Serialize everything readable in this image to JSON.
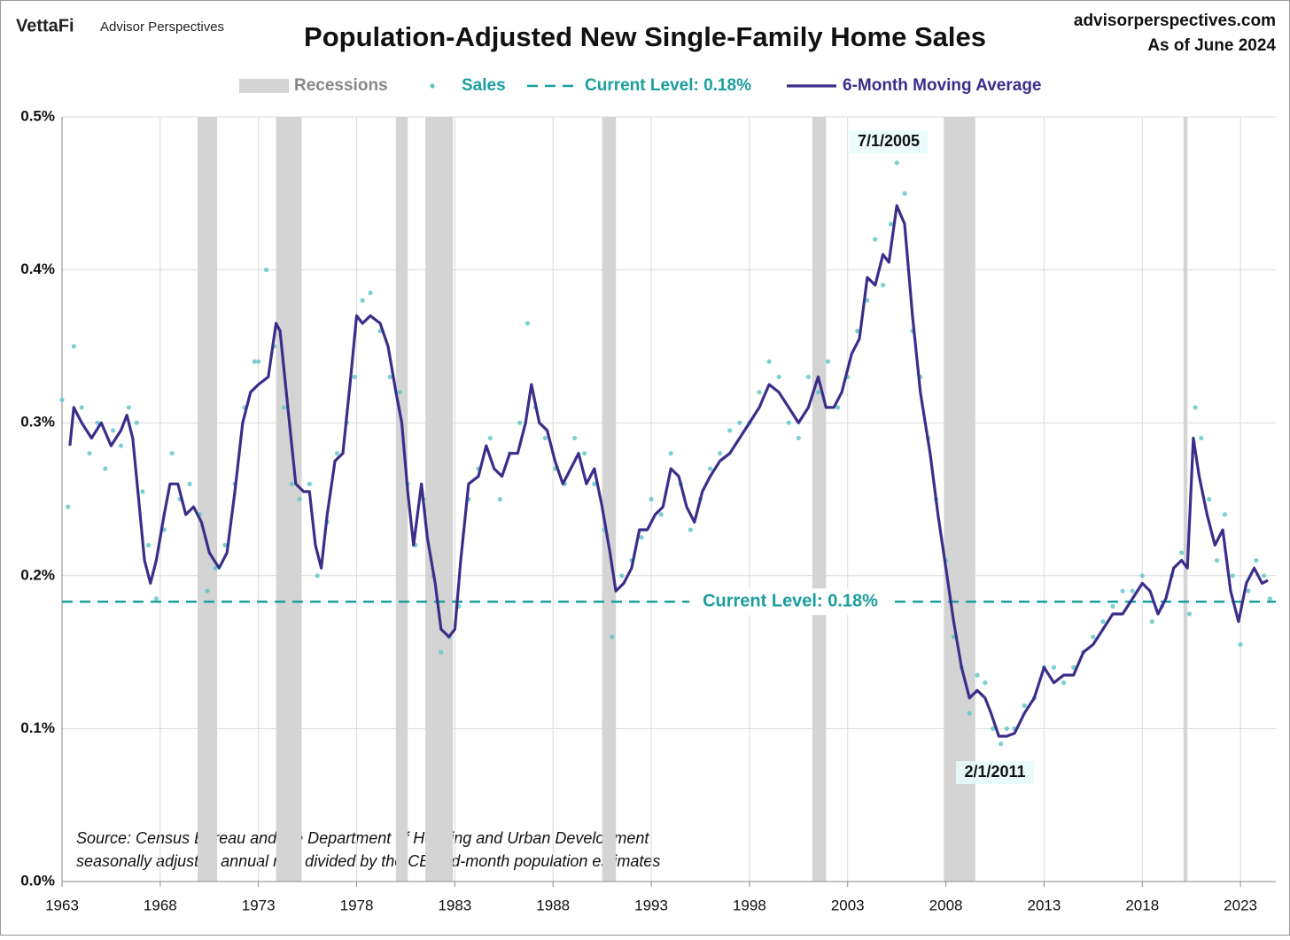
{
  "chart_data": {
    "type": "line",
    "title": "Population-Adjusted New Single-Family Home Sales",
    "logo": "VettaFi",
    "logo_sub": "Advisor Perspectives",
    "site": "advisorperspectives.com",
    "as_of": "As of June 2024",
    "source": [
      "Source: Census Bureau and the Department of Housing and Urban Development",
      "seasonally adjusted annual rate divided by the CB mid-month population estimates"
    ],
    "annotations": [
      "7/1/2005",
      "2/1/2011"
    ],
    "xlim": [
      1963,
      2024.8
    ],
    "xticks": [
      1963,
      1968,
      1973,
      1978,
      1983,
      1988,
      1993,
      1998,
      2003,
      2008,
      2013,
      2018,
      2023
    ],
    "ylim": [
      0,
      0.5
    ],
    "yticks": [
      {
        "value": 0,
        "label": "0.0%"
      },
      {
        "value": 0.1,
        "label": "0.1%"
      },
      {
        "value": 0.2,
        "label": "0.2%"
      },
      {
        "value": 0.3,
        "label": "0.3%"
      },
      {
        "value": 0.4,
        "label": "0.4%"
      },
      {
        "value": 0.5,
        "label": "0.5%"
      }
    ],
    "grid": true,
    "recessions": {
      "name": "Recessions",
      "color": "#d4d4d4",
      "periods": [
        [
          1969.9,
          1970.9
        ],
        [
          1973.9,
          1975.2
        ],
        [
          1980.0,
          1980.6
        ],
        [
          1981.5,
          1982.9
        ],
        [
          1990.5,
          1991.2
        ],
        [
          2001.2,
          2001.9
        ],
        [
          2007.9,
          2009.5
        ],
        [
          2020.1,
          2020.3
        ]
      ]
    },
    "reference_line": {
      "name": "Current Level: 0.18%",
      "value": 0.183,
      "color": "#1a9e9e"
    },
    "series": [
      {
        "name": "Sales",
        "kind": "scatter",
        "color": "#5cc4c4",
        "x": [
          1963.0,
          1963.3,
          1963.6,
          1964.0,
          1964.4,
          1964.8,
          1965.2,
          1965.6,
          1966.0,
          1966.4,
          1966.8,
          1967.1,
          1967.4,
          1967.8,
          1968.2,
          1968.6,
          1969.0,
          1969.5,
          1970.0,
          1970.4,
          1970.8,
          1971.3,
          1971.8,
          1972.3,
          1972.8,
          1973.0,
          1973.4,
          1973.8,
          1974.3,
          1974.7,
          1975.1,
          1975.6,
          1976.0,
          1976.5,
          1977.0,
          1977.5,
          1977.9,
          1978.3,
          1978.7,
          1979.2,
          1979.7,
          1980.2,
          1980.6,
          1981.0,
          1981.4,
          1981.9,
          1982.3,
          1982.7,
          1983.2,
          1983.7,
          1984.2,
          1984.8,
          1985.3,
          1985.8,
          1986.3,
          1986.7,
          1987.1,
          1987.6,
          1988.1,
          1988.6,
          1989.1,
          1989.6,
          1990.1,
          1990.6,
          1991.0,
          1991.5,
          1992.0,
          1992.5,
          1993.0,
          1993.5,
          1994.0,
          1994.5,
          1995.0,
          1995.5,
          1996.0,
          1996.5,
          1997.0,
          1997.5,
          1998.0,
          1998.5,
          1999.0,
          1999.5,
          2000.0,
          2000.5,
          2001.0,
          2001.5,
          2002.0,
          2002.5,
          2003.0,
          2003.5,
          2004.0,
          2004.4,
          2004.8,
          2005.2,
          2005.5,
          2005.9,
          2006.3,
          2006.7,
          2007.1,
          2007.5,
          2008.0,
          2008.4,
          2008.8,
          2009.2,
          2009.6,
          2010.0,
          2010.4,
          2010.8,
          2011.1,
          2011.5,
          2012.0,
          2012.5,
          2013.0,
          2013.5,
          2014.0,
          2014.5,
          2015.0,
          2015.5,
          2016.0,
          2016.5,
          2017.0,
          2017.5,
          2018.0,
          2018.5,
          2019.0,
          2019.5,
          2020.0,
          2020.4,
          2020.7,
          2021.0,
          2021.4,
          2021.8,
          2022.2,
          2022.6,
          2023.0,
          2023.4,
          2023.8,
          2024.2,
          2024.5
        ],
        "values": [
          0.315,
          0.245,
          0.35,
          0.31,
          0.28,
          0.3,
          0.27,
          0.295,
          0.285,
          0.31,
          0.3,
          0.255,
          0.22,
          0.185,
          0.23,
          0.28,
          0.25,
          0.26,
          0.24,
          0.19,
          0.205,
          0.22,
          0.26,
          0.31,
          0.34,
          0.34,
          0.4,
          0.35,
          0.31,
          0.26,
          0.25,
          0.26,
          0.2,
          0.235,
          0.28,
          0.3,
          0.33,
          0.38,
          0.385,
          0.36,
          0.33,
          0.32,
          0.26,
          0.22,
          0.25,
          0.2,
          0.15,
          0.16,
          0.18,
          0.25,
          0.27,
          0.29,
          0.25,
          0.28,
          0.3,
          0.365,
          0.31,
          0.29,
          0.27,
          0.26,
          0.29,
          0.28,
          0.26,
          0.23,
          0.16,
          0.2,
          0.21,
          0.225,
          0.25,
          0.24,
          0.28,
          0.26,
          0.23,
          0.25,
          0.27,
          0.28,
          0.295,
          0.3,
          0.3,
          0.32,
          0.34,
          0.33,
          0.3,
          0.29,
          0.33,
          0.32,
          0.34,
          0.31,
          0.33,
          0.36,
          0.38,
          0.42,
          0.39,
          0.43,
          0.47,
          0.45,
          0.36,
          0.33,
          0.29,
          0.25,
          0.21,
          0.16,
          0.14,
          0.11,
          0.135,
          0.13,
          0.1,
          0.09,
          0.1,
          0.1,
          0.115,
          0.12,
          0.14,
          0.14,
          0.13,
          0.14,
          0.15,
          0.16,
          0.17,
          0.18,
          0.19,
          0.19,
          0.2,
          0.17,
          0.18,
          0.2,
          0.215,
          0.175,
          0.31,
          0.29,
          0.25,
          0.21,
          0.24,
          0.2,
          0.155,
          0.19,
          0.21,
          0.2,
          0.185
        ]
      },
      {
        "name": "6-Month Moving Average",
        "kind": "line",
        "color": "#3b2e8a",
        "x": [
          1963.4,
          1963.6,
          1964.0,
          1964.5,
          1965.0,
          1965.5,
          1966.0,
          1966.3,
          1966.6,
          1966.9,
          1967.2,
          1967.5,
          1967.8,
          1968.2,
          1968.5,
          1968.9,
          1969.3,
          1969.7,
          1970.1,
          1970.5,
          1971.0,
          1971.4,
          1971.8,
          1972.2,
          1972.6,
          1973.0,
          1973.5,
          1973.9,
          1974.1,
          1974.5,
          1974.9,
          1975.3,
          1975.6,
          1975.9,
          1976.2,
          1976.5,
          1976.9,
          1977.3,
          1977.7,
          1978.0,
          1978.3,
          1978.7,
          1979.2,
          1979.6,
          1980.0,
          1980.3,
          1980.6,
          1980.9,
          1981.3,
          1981.6,
          1982.0,
          1982.3,
          1982.7,
          1983.0,
          1983.3,
          1983.7,
          1984.2,
          1984.6,
          1985.0,
          1985.4,
          1985.8,
          1986.2,
          1986.6,
          1986.9,
          1987.3,
          1987.7,
          1988.1,
          1988.5,
          1988.9,
          1989.3,
          1989.7,
          1990.1,
          1990.5,
          1990.9,
          1991.2,
          1991.6,
          1992.0,
          1992.4,
          1992.8,
          1993.2,
          1993.6,
          1994.0,
          1994.4,
          1994.8,
          1995.2,
          1995.6,
          1996.0,
          1996.5,
          1997.0,
          1997.5,
          1998.0,
          1998.5,
          1999.0,
          1999.5,
          2000.0,
          2000.5,
          2001.0,
          2001.5,
          2001.9,
          2002.3,
          2002.7,
          2003.2,
          2003.6,
          2004.0,
          2004.4,
          2004.8,
          2005.1,
          2005.5,
          2005.9,
          2006.3,
          2006.7,
          2007.2,
          2007.6,
          2008.0,
          2008.4,
          2008.8,
          2009.2,
          2009.6,
          2010.0,
          2010.3,
          2010.7,
          2011.1,
          2011.5,
          2012.0,
          2012.5,
          2013.0,
          2013.5,
          2014.0,
          2014.5,
          2015.0,
          2015.5,
          2016.0,
          2016.5,
          2017.0,
          2017.5,
          2018.0,
          2018.4,
          2018.8,
          2019.2,
          2019.6,
          2020.0,
          2020.3,
          2020.6,
          2020.9,
          2021.3,
          2021.7,
          2022.1,
          2022.5,
          2022.9,
          2023.3,
          2023.7,
          2024.1,
          2024.4
        ],
        "values": [
          0.285,
          0.31,
          0.3,
          0.29,
          0.3,
          0.285,
          0.295,
          0.305,
          0.29,
          0.25,
          0.21,
          0.195,
          0.21,
          0.24,
          0.26,
          0.26,
          0.24,
          0.245,
          0.235,
          0.215,
          0.205,
          0.215,
          0.255,
          0.3,
          0.32,
          0.325,
          0.33,
          0.365,
          0.36,
          0.31,
          0.26,
          0.255,
          0.255,
          0.22,
          0.205,
          0.24,
          0.275,
          0.28,
          0.33,
          0.37,
          0.365,
          0.37,
          0.365,
          0.35,
          0.32,
          0.3,
          0.255,
          0.22,
          0.26,
          0.225,
          0.195,
          0.165,
          0.16,
          0.165,
          0.21,
          0.26,
          0.265,
          0.285,
          0.27,
          0.265,
          0.28,
          0.28,
          0.3,
          0.325,
          0.3,
          0.295,
          0.275,
          0.26,
          0.27,
          0.28,
          0.26,
          0.27,
          0.245,
          0.215,
          0.19,
          0.195,
          0.205,
          0.23,
          0.23,
          0.24,
          0.245,
          0.27,
          0.265,
          0.245,
          0.235,
          0.255,
          0.265,
          0.275,
          0.28,
          0.29,
          0.3,
          0.31,
          0.325,
          0.32,
          0.31,
          0.3,
          0.31,
          0.33,
          0.31,
          0.31,
          0.32,
          0.345,
          0.355,
          0.395,
          0.39,
          0.41,
          0.405,
          0.442,
          0.43,
          0.37,
          0.32,
          0.28,
          0.24,
          0.205,
          0.17,
          0.14,
          0.12,
          0.125,
          0.12,
          0.11,
          0.095,
          0.095,
          0.097,
          0.11,
          0.12,
          0.14,
          0.13,
          0.135,
          0.135,
          0.15,
          0.155,
          0.165,
          0.175,
          0.175,
          0.185,
          0.195,
          0.19,
          0.175,
          0.185,
          0.205,
          0.21,
          0.205,
          0.29,
          0.265,
          0.24,
          0.22,
          0.23,
          0.19,
          0.17,
          0.195,
          0.205,
          0.195,
          0.197
        ]
      }
    ]
  }
}
